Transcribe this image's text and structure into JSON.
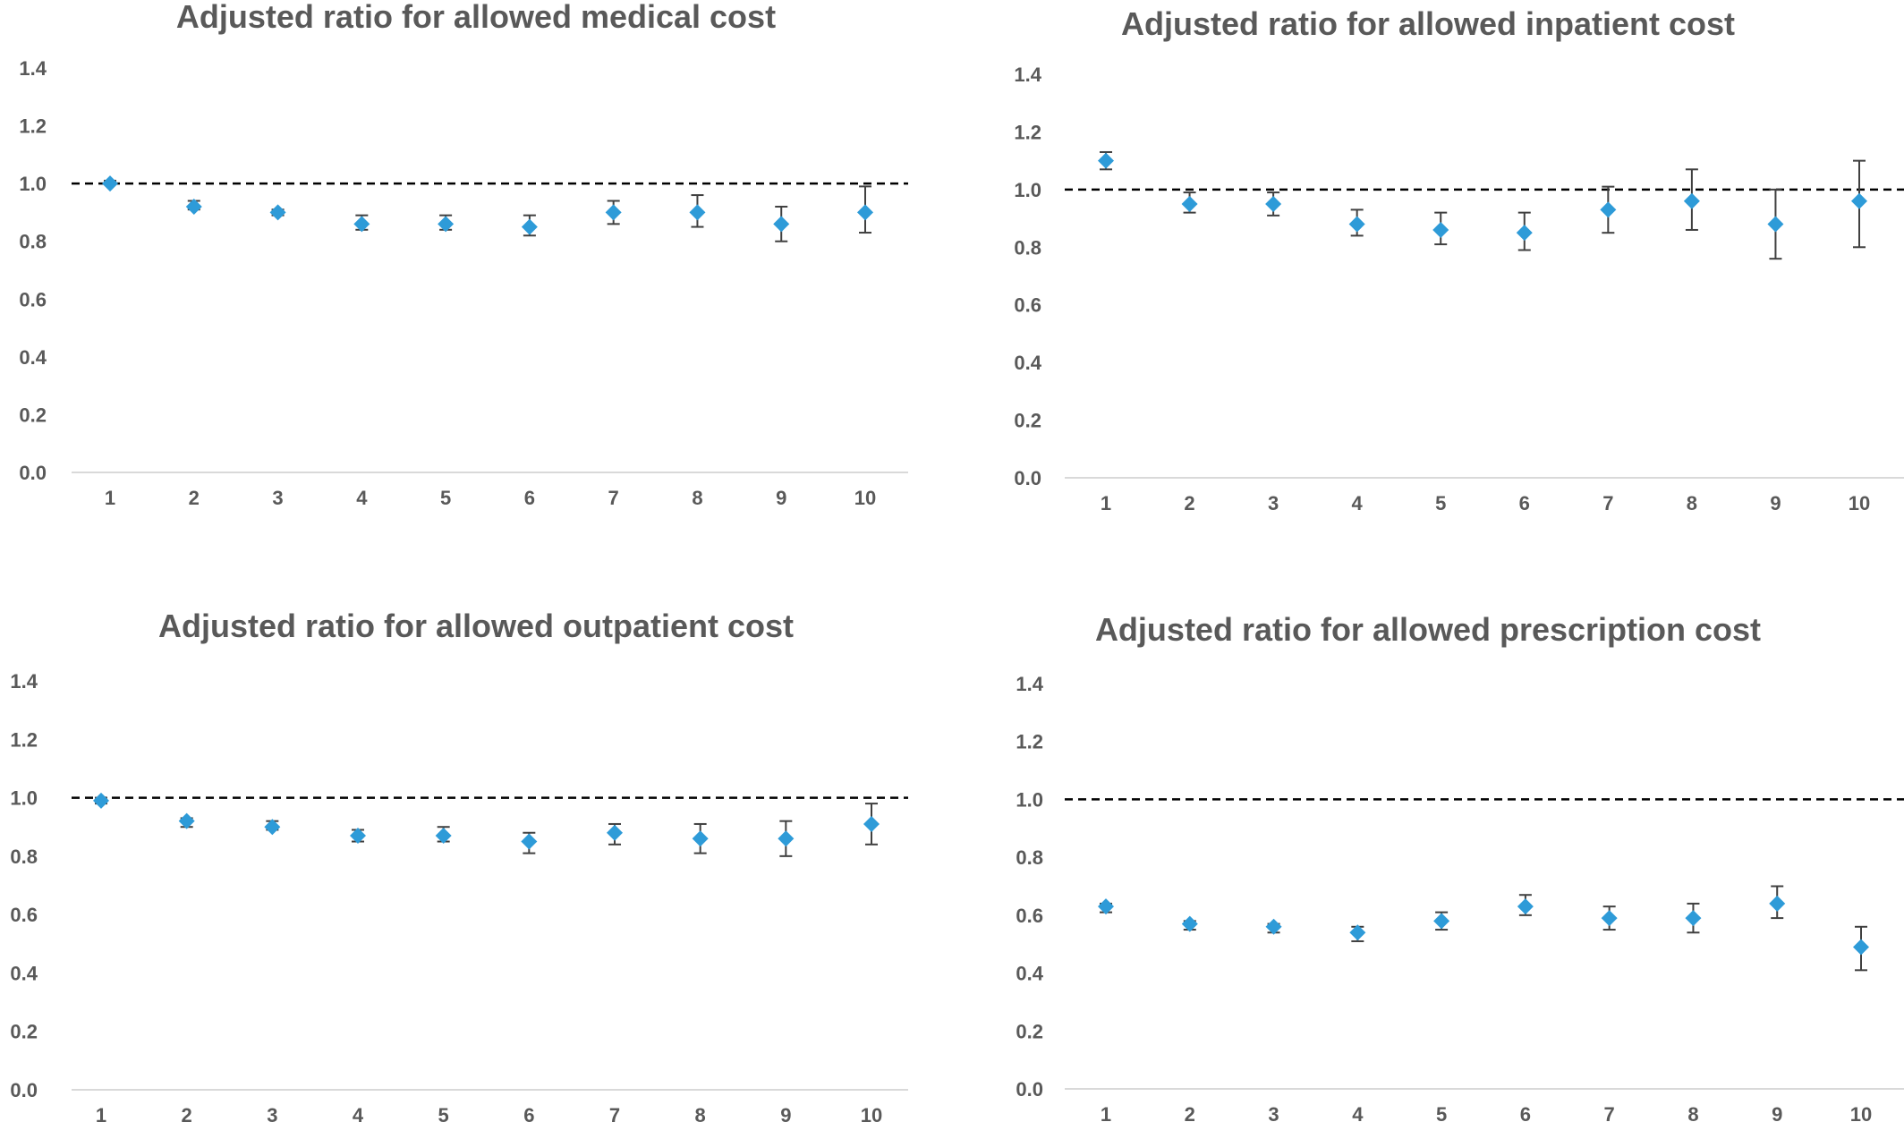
{
  "chart_data": [
    {
      "type": "scatter",
      "title": "Adjusted ratio for allowed medical cost",
      "xlabel": "",
      "ylabel": "",
      "ylim": [
        0.0,
        1.4
      ],
      "yticks": [
        "0.0",
        "0.2",
        "0.4",
        "0.6",
        "0.8",
        "1.0",
        "1.2",
        "1.4"
      ],
      "reference_line": 1.0,
      "categories": [
        "1",
        "2",
        "3",
        "4",
        "5",
        "6",
        "7",
        "8",
        "9",
        "10"
      ],
      "values": [
        1.0,
        0.92,
        0.9,
        0.86,
        0.86,
        0.85,
        0.9,
        0.9,
        0.86,
        0.9
      ],
      "error_low": [
        1.0,
        0.91,
        0.89,
        0.84,
        0.84,
        0.82,
        0.86,
        0.85,
        0.8,
        0.83
      ],
      "error_high": [
        1.01,
        0.94,
        0.91,
        0.89,
        0.89,
        0.89,
        0.94,
        0.96,
        0.92,
        0.99
      ],
      "marker_color": "#2E9BD8"
    },
    {
      "type": "scatter",
      "title": "Adjusted ratio for allowed inpatient cost",
      "xlabel": "",
      "ylabel": "",
      "ylim": [
        0.0,
        1.4
      ],
      "yticks": [
        "0.0",
        "0.2",
        "0.4",
        "0.6",
        "0.8",
        "1.0",
        "1.2",
        "1.4"
      ],
      "reference_line": 1.0,
      "categories": [
        "1",
        "2",
        "3",
        "4",
        "5",
        "6",
        "7",
        "8",
        "9",
        "10"
      ],
      "values": [
        1.1,
        0.95,
        0.95,
        0.88,
        0.86,
        0.85,
        0.93,
        0.96,
        0.88,
        0.96
      ],
      "error_low": [
        1.07,
        0.92,
        0.91,
        0.84,
        0.81,
        0.79,
        0.85,
        0.86,
        0.76,
        0.8
      ],
      "error_high": [
        1.13,
        0.99,
        0.99,
        0.93,
        0.92,
        0.92,
        1.01,
        1.07,
        1.0,
        1.1
      ],
      "marker_color": "#2E9BD8"
    },
    {
      "type": "scatter",
      "title": "Adjusted ratio for allowed outpatient cost",
      "xlabel": "",
      "ylabel": "",
      "ylim": [
        0.0,
        1.4
      ],
      "yticks": [
        "0.0",
        "0.2",
        "0.4",
        "0.6",
        "0.8",
        "1.0",
        "1.2",
        "1.4"
      ],
      "reference_line": 1.0,
      "categories": [
        "1",
        "2",
        "3",
        "4",
        "5",
        "6",
        "7",
        "8",
        "9",
        "10"
      ],
      "values": [
        0.99,
        0.92,
        0.9,
        0.87,
        0.87,
        0.85,
        0.88,
        0.86,
        0.86,
        0.91
      ],
      "error_low": [
        0.98,
        0.9,
        0.89,
        0.85,
        0.85,
        0.81,
        0.84,
        0.81,
        0.8,
        0.84
      ],
      "error_high": [
        1.0,
        0.93,
        0.92,
        0.89,
        0.9,
        0.88,
        0.91,
        0.91,
        0.92,
        0.98
      ],
      "marker_color": "#2E9BD8"
    },
    {
      "type": "scatter",
      "title": "Adjusted ratio for allowed prescription cost",
      "xlabel": "",
      "ylabel": "",
      "ylim": [
        0.0,
        1.4
      ],
      "yticks": [
        "0.0",
        "0.2",
        "0.4",
        "0.6",
        "0.8",
        "1.0",
        "1.2",
        "1.4"
      ],
      "reference_line": 1.0,
      "categories": [
        "1",
        "2",
        "3",
        "4",
        "5",
        "6",
        "7",
        "8",
        "9",
        "10"
      ],
      "values": [
        0.63,
        0.57,
        0.56,
        0.54,
        0.58,
        0.63,
        0.59,
        0.59,
        0.64,
        0.49
      ],
      "error_low": [
        0.61,
        0.55,
        0.54,
        0.51,
        0.55,
        0.6,
        0.55,
        0.54,
        0.59,
        0.41
      ],
      "error_high": [
        0.64,
        0.58,
        0.57,
        0.56,
        0.61,
        0.67,
        0.63,
        0.64,
        0.7,
        0.56
      ],
      "marker_color": "#2E9BD8"
    }
  ]
}
